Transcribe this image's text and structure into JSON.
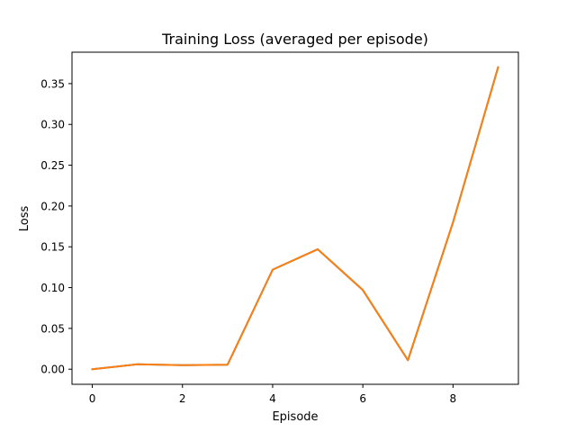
{
  "chart_data": {
    "type": "line",
    "title": "Training Loss (averaged per episode)",
    "xlabel": "Episode",
    "ylabel": "Loss",
    "xlim": [
      -0.45,
      9.45
    ],
    "ylim": [
      -0.0185,
      0.3885
    ],
    "xticks": [
      0,
      2,
      4,
      6,
      8
    ],
    "xtick_labels": [
      "0",
      "2",
      "4",
      "6",
      "8"
    ],
    "yticks": [
      0.0,
      0.05,
      0.1,
      0.15,
      0.2,
      0.25,
      0.3,
      0.35
    ],
    "ytick_labels": [
      "0.00",
      "0.05",
      "0.10",
      "0.15",
      "0.20",
      "0.25",
      "0.30",
      "0.35"
    ],
    "grid": false,
    "x": [
      0,
      1,
      2,
      3,
      4,
      5,
      6,
      7,
      8,
      9
    ],
    "series": [
      {
        "values": [
          0.0,
          0.006,
          0.005,
          0.0055,
          0.122,
          0.147,
          0.097,
          0.011,
          0.18,
          0.37
        ],
        "color": "#1f77b4"
      },
      {
        "values": [
          0.0,
          0.006,
          0.005,
          0.0055,
          0.122,
          0.147,
          0.097,
          0.011,
          0.18,
          0.37
        ],
        "color": "#ff7f0e"
      }
    ]
  }
}
